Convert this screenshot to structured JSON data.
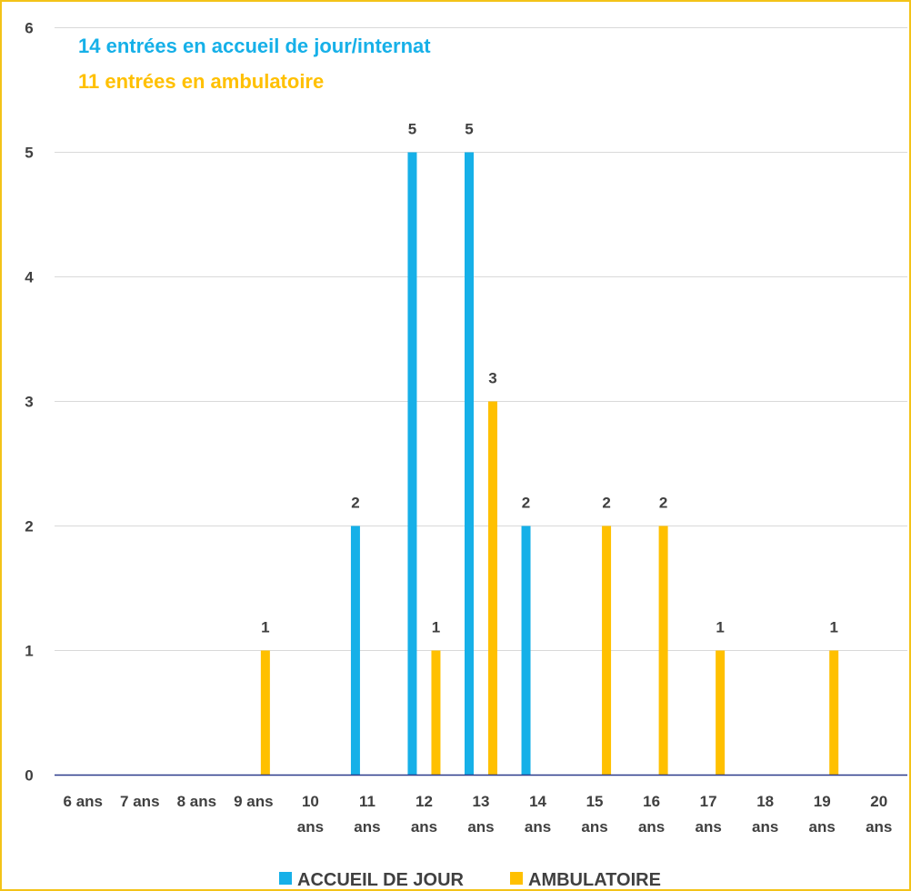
{
  "chart_data": {
    "type": "bar",
    "annotations": [
      {
        "text": "14 entrées en accueil de jour/internat",
        "color": "#16b0e8"
      },
      {
        "text": "11 entrées en ambulatoire",
        "color": "#ffc000"
      }
    ],
    "categories": [
      "6 ans",
      "7 ans",
      "8 ans",
      "9 ans",
      "10 ans",
      "11 ans",
      "12 ans",
      "13 ans",
      "14 ans",
      "15 ans",
      "16 ans",
      "17 ans",
      "18 ans",
      "19 ans",
      "20 ans"
    ],
    "series": [
      {
        "name": "ACCUEIL DE JOUR",
        "color": "#16b0e8",
        "values": [
          0,
          0,
          0,
          0,
          0,
          2,
          5,
          5,
          2,
          0,
          0,
          0,
          0,
          0,
          0
        ]
      },
      {
        "name": "AMBULATOIRE",
        "color": "#ffc000",
        "values": [
          0,
          0,
          0,
          1,
          0,
          0,
          1,
          3,
          0,
          2,
          2,
          1,
          0,
          1,
          0
        ]
      }
    ],
    "y_ticks": [
      0,
      1,
      2,
      3,
      4,
      5,
      6
    ],
    "ylim": [
      0,
      6
    ],
    "grid": true,
    "legend_position": "bottom"
  }
}
